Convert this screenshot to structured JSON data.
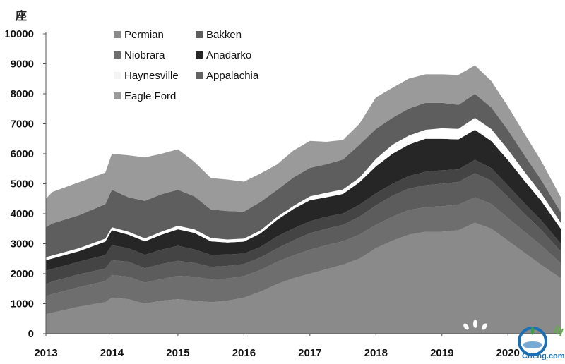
{
  "chart_data": {
    "type": "area",
    "stacked": true,
    "unit_label": "座",
    "title": "",
    "xlabel": "",
    "ylabel": "",
    "ylim": [
      0,
      10000
    ],
    "xlim": [
      2013,
      2020.8
    ],
    "y_ticks": [
      "0",
      "1000",
      "2000",
      "3000",
      "4000",
      "5000",
      "6000",
      "7000",
      "8000",
      "9000",
      "10000"
    ],
    "x_ticks": [
      "2013",
      "2014",
      "2015",
      "2016",
      "2017",
      "2018",
      "2019",
      "2020"
    ],
    "legend_position": "top-left",
    "x": [
      2013.0,
      2013.1,
      2013.5,
      2013.9,
      2014.0,
      2014.25,
      2014.5,
      2014.75,
      2015.0,
      2015.25,
      2015.5,
      2015.75,
      2016.0,
      2016.25,
      2016.5,
      2016.75,
      2017.0,
      2017.25,
      2017.5,
      2017.75,
      2018.0,
      2018.25,
      2018.5,
      2018.75,
      2019.0,
      2019.25,
      2019.5,
      2019.75,
      2020.0,
      2020.25,
      2020.5,
      2020.8
    ],
    "series": [
      {
        "name": "Permian",
        "color": "#8a8a8a",
        "values": [
          650,
          700,
          900,
          1050,
          1200,
          1150,
          1000,
          1100,
          1150,
          1100,
          1050,
          1100,
          1200,
          1400,
          1650,
          1850,
          2000,
          2150,
          2300,
          2500,
          2850,
          3100,
          3300,
          3400,
          3400,
          3450,
          3700,
          3500,
          3100,
          2700,
          2300,
          1850
        ]
      },
      {
        "name": "Niobrara",
        "color": "#6e6e6e",
        "values": [
          600,
          620,
          650,
          700,
          750,
          750,
          700,
          720,
          780,
          800,
          760,
          740,
          720,
          720,
          740,
          760,
          800,
          800,
          780,
          800,
          780,
          800,
          820,
          820,
          850,
          850,
          850,
          820,
          760,
          700,
          650,
          500
        ]
      },
      {
        "name": "Haynesville",
        "color": "#5c5c5c",
        "values": [
          400,
          420,
          430,
          420,
          500,
          500,
          480,
          500,
          500,
          460,
          420,
          420,
          400,
          420,
          450,
          500,
          550,
          550,
          550,
          600,
          650,
          700,
          720,
          730,
          750,
          760,
          800,
          780,
          700,
          600,
          520,
          400
        ]
      },
      {
        "name": "Eagle Ford",
        "color": "#444444",
        "values": [
          450,
          420,
          420,
          450,
          500,
          450,
          450,
          480,
          500,
          450,
          400,
          380,
          350,
          350,
          400,
          400,
          400,
          400,
          380,
          400,
          400,
          400,
          420,
          450,
          450,
          420,
          450,
          420,
          380,
          350,
          320,
          250
        ]
      },
      {
        "name": "Anadarko",
        "color": "#262626",
        "values": [
          350,
          350,
          350,
          450,
          500,
          450,
          450,
          500,
          550,
          550,
          450,
          400,
          400,
          450,
          550,
          650,
          700,
          650,
          650,
          750,
          900,
          1000,
          1050,
          1100,
          1050,
          1000,
          1000,
          900,
          850,
          750,
          650,
          500
        ]
      },
      {
        "name": "",
        "color": "#ffffff",
        "values": [
          100,
          100,
          100,
          100,
          100,
          100,
          100,
          100,
          120,
          120,
          110,
          100,
          100,
          100,
          100,
          100,
          130,
          150,
          150,
          150,
          250,
          300,
          300,
          300,
          350,
          350,
          400,
          400,
          350,
          300,
          250,
          200
        ]
      },
      {
        "name": "Bakken",
        "color": "#5e5e5e",
        "values": [
          1000,
          1070,
          1100,
          1150,
          1250,
          1150,
          1250,
          1250,
          1200,
          1100,
          950,
          950,
          900,
          950,
          900,
          950,
          950,
          950,
          1000,
          1100,
          1000,
          900,
          900,
          900,
          850,
          800,
          800,
          720,
          650,
          550,
          450,
          350
        ]
      },
      {
        "name": "Appalachia",
        "color": "#787878",
        "values": [
          0,
          0,
          0,
          0,
          0,
          0,
          0,
          0,
          0,
          0,
          0,
          0,
          0,
          0,
          0,
          0,
          0,
          0,
          0,
          0,
          0,
          0,
          0,
          0,
          0,
          0,
          0,
          0,
          0,
          0,
          0,
          0
        ]
      },
      {
        "name": "",
        "color": "#9a9a9a",
        "values": [
          950,
          1050,
          1100,
          1050,
          1200,
          1400,
          1450,
          1350,
          1350,
          1150,
          1050,
          1050,
          1000,
          950,
          850,
          900,
          900,
          750,
          650,
          700,
          1050,
          1000,
          1000,
          950,
          950,
          1000,
          950,
          880,
          790,
          720,
          640,
          500
        ]
      }
    ],
    "legend": [
      {
        "label": "Permian",
        "color": "#8a8a8a"
      },
      {
        "label": "Bakken",
        "color": "#5e5e5e"
      },
      {
        "label": "Niobrara",
        "color": "#6e6e6e"
      },
      {
        "label": "Anadarko",
        "color": "#262626"
      },
      {
        "label": "Haynesville",
        "color": "#f4f4f4"
      },
      {
        "label": "Appalachia",
        "color": "#636363"
      },
      {
        "label": "Eagle Ford",
        "color": "#9a9a9a"
      }
    ]
  },
  "watermark": {
    "text": "CnLng.com"
  }
}
